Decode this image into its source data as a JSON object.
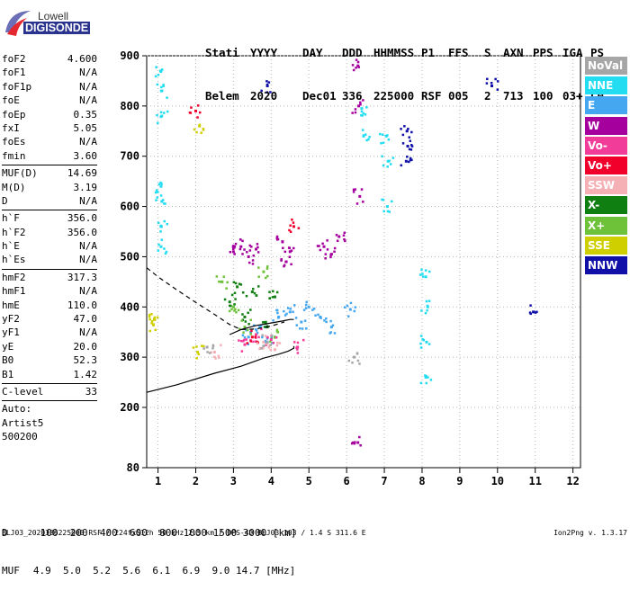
{
  "logo": {
    "line1": "Lowell",
    "line2": "DIGISONDE"
  },
  "header": {
    "labels": [
      "Stati",
      "YYYY",
      "DAY",
      "DDD",
      "HHMMSS",
      "P1",
      "FFS",
      "S",
      "AXN",
      "PPS",
      "IGA",
      "PS"
    ],
    "values": [
      "Belem",
      "2020",
      "Dec01",
      "336",
      "225000",
      "RSF",
      "005",
      "2",
      "713",
      "100",
      "03+",
      "C0"
    ]
  },
  "params": [
    {
      "name": "foF2",
      "value": "4.600"
    },
    {
      "name": "foF1",
      "value": "N/A"
    },
    {
      "name": "foF1p",
      "value": "N/A"
    },
    {
      "name": "foE",
      "value": "N/A"
    },
    {
      "name": "foEp",
      "value": "0.35"
    },
    {
      "name": "fxI",
      "value": "5.05"
    },
    {
      "name": "foEs",
      "value": "N/A"
    },
    {
      "name": "fmin",
      "value": "3.60"
    },
    {
      "divider": true
    },
    {
      "name": "MUF(D)",
      "value": "14.69"
    },
    {
      "name": "M(D)",
      "value": "3.19"
    },
    {
      "name": "D",
      "value": "N/A"
    },
    {
      "divider": true
    },
    {
      "name": "h`F",
      "value": "356.0"
    },
    {
      "name": "h`F2",
      "value": "356.0"
    },
    {
      "name": "h`E",
      "value": "N/A"
    },
    {
      "name": "h`Es",
      "value": "N/A"
    },
    {
      "divider": true
    },
    {
      "name": "hmF2",
      "value": "317.3"
    },
    {
      "name": "hmF1",
      "value": "N/A"
    },
    {
      "name": "hmE",
      "value": "110.0"
    },
    {
      "name": "yF2",
      "value": "47.0"
    },
    {
      "name": "yF1",
      "value": "N/A"
    },
    {
      "name": "yE",
      "value": "20.0"
    },
    {
      "name": "B0",
      "value": "52.3"
    },
    {
      "name": "B1",
      "value": "1.42"
    },
    {
      "divider": true
    },
    {
      "name": "C-level",
      "value": "33"
    },
    {
      "divider": true
    },
    {
      "text": "Auto:"
    },
    {
      "text": "Artist5"
    },
    {
      "text": "500200"
    }
  ],
  "legend": [
    {
      "label": "NoVal",
      "color": "#a6a6a6"
    },
    {
      "label": "NNE",
      "color": "#22ddf2"
    },
    {
      "label": "E",
      "color": "#45a7ef"
    },
    {
      "label": "W",
      "color": "#a5009e"
    },
    {
      "label": "Vo-",
      "color": "#f23c9a"
    },
    {
      "label": "Vo+",
      "color": "#f0002a"
    },
    {
      "label": "SSW",
      "color": "#f5b0b5"
    },
    {
      "label": "X-",
      "color": "#0f7f11"
    },
    {
      "label": "X+",
      "color": "#6ec23a"
    },
    {
      "label": "SSE",
      "color": "#cfcf00"
    },
    {
      "label": "NNW",
      "color": "#1010a9"
    }
  ],
  "footer": {
    "d_label": "D",
    "d_values": "100  200  400  600  800 1000 1500 3000 [km]",
    "muf_label": "MUF",
    "muf_values": "4.9  5.0  5.2  5.6  6.1  6.9  9.0 14.7 [MHz]",
    "file_info": "BLJ03_2020336225000.RSF / 224fx512h 50 kHz 2.5 km / DPS-4D BLJ03 103 / 1.4 S 311.6 E",
    "version": "Ion2Png v. 1.3.17"
  },
  "chart_data": {
    "type": "scatter",
    "x_ticks": [
      1,
      2,
      3,
      4,
      5,
      6,
      7,
      8,
      9,
      10,
      11,
      12
    ],
    "y_ticks": [
      80,
      200,
      300,
      400,
      500,
      600,
      700,
      800,
      900
    ],
    "xlim": [
      0.7,
      12.2
    ],
    "ylim": [
      80,
      900
    ],
    "x_scale": "linear",
    "y_scale": "linear",
    "gridlines": "dotted",
    "virtual_height_trace": {
      "x": [
        0.7,
        1.5,
        2.5,
        3.2,
        3.8,
        4.2,
        4.45,
        4.6,
        4.6
      ],
      "y": [
        230,
        245,
        268,
        282,
        298,
        306,
        312,
        318,
        322
      ],
      "style": "solid"
    },
    "true_height_profile": {
      "x": [
        2.9,
        3.2,
        3.6,
        4.0,
        4.3,
        4.5,
        4.6
      ],
      "y": [
        345,
        355,
        363,
        368,
        372,
        375,
        375
      ],
      "style": "solid"
    },
    "dashed_profile": {
      "x": [
        0.7,
        1.0,
        1.5,
        2.0,
        2.5,
        2.9,
        3.2,
        3.6,
        4.0,
        4.35
      ],
      "y": [
        478,
        460,
        434,
        409,
        385,
        365,
        355,
        356,
        362,
        370
      ],
      "style": "dashed"
    },
    "echo_clusters": [
      {
        "label": "NNE",
        "x": [
          1.08,
          1.09,
          1.1,
          1.08,
          1.1,
          1.09,
          1.08
        ],
        "y": [
          870,
          830,
          780,
          640,
          610,
          560,
          520
        ]
      },
      {
        "label": "NNE",
        "x": [
          7.05,
          7.1,
          7.08,
          8.1,
          8.15,
          8.12,
          8.1,
          6.4,
          6.45
        ],
        "y": [
          740,
          690,
          600,
          460,
          400,
          330,
          260,
          795,
          740
        ]
      },
      {
        "label": "E",
        "x": [
          3.4,
          3.7,
          3.9,
          4.2,
          4.5,
          4.8,
          5.0,
          5.3,
          5.6,
          6.1
        ],
        "y": [
          340,
          360,
          330,
          380,
          390,
          370,
          400,
          380,
          360,
          395
        ]
      },
      {
        "label": "W",
        "x": [
          3.0,
          3.2,
          3.4,
          3.6,
          4.3,
          4.4,
          4.5,
          5.4,
          5.6,
          5.8,
          6.3,
          6.32,
          6.35,
          6.3
        ],
        "y": [
          510,
          520,
          500,
          515,
          530,
          490,
          510,
          520,
          505,
          540,
          880,
          800,
          620,
          130
        ]
      },
      {
        "label": "X-",
        "x": [
          2.9,
          3.1,
          3.3,
          3.5,
          3.9,
          4.1
        ],
        "y": [
          410,
          440,
          380,
          430,
          360,
          420
        ]
      },
      {
        "label": "X+",
        "x": [
          2.7,
          3.0,
          3.3,
          3.8,
          4.1
        ],
        "y": [
          450,
          400,
          360,
          470,
          340
        ]
      },
      {
        "label": "SSE",
        "x": [
          0.9,
          0.88,
          2.05,
          2.1
        ],
        "y": [
          375,
          365,
          310,
          760
        ]
      },
      {
        "label": "NNW",
        "x": [
          7.6,
          7.62,
          7.58,
          3.9,
          9.85,
          10.95
        ],
        "y": [
          750,
          720,
          690,
          840,
          840,
          390
        ]
      },
      {
        "label": "Vo-",
        "x": [
          3.3,
          3.6,
          4.0,
          4.7
        ],
        "y": [
          325,
          345,
          335,
          320
        ]
      },
      {
        "label": "Vo+",
        "x": [
          2.0,
          3.5,
          4.6
        ],
        "y": [
          790,
          340,
          560
        ]
      },
      {
        "label": "SSW",
        "x": [
          2.5,
          3.8,
          4.1
        ],
        "y": [
          310,
          330,
          315
        ]
      },
      {
        "label": "NoVal",
        "x": [
          2.3,
          3.9,
          6.2
        ],
        "y": [
          320,
          330,
          300
        ]
      }
    ]
  }
}
